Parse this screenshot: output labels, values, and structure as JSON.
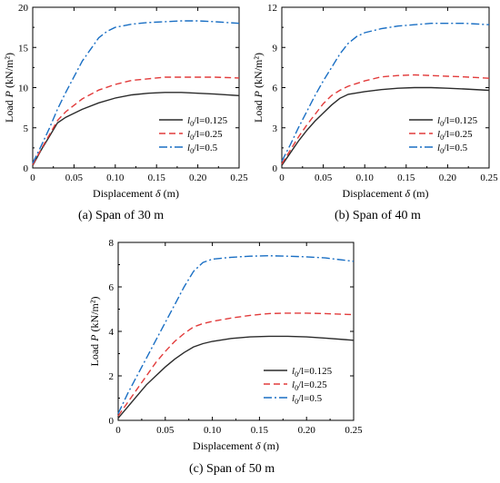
{
  "colors": {
    "l0125": "#2b2b2b",
    "l025": "#e23b3b",
    "l05": "#1a6fc4"
  },
  "chart_data": [
    {
      "type": "line",
      "caption": "(a) Span of 30 m",
      "xlabel": "Displacement",
      "xsymbol": "δ",
      "xunit": "(m)",
      "ylabel": "Load",
      "ysymbol": "P",
      "yunit": "(kN/m²)",
      "xlim": [
        0,
        0.25
      ],
      "ylim": [
        0,
        20
      ],
      "xticks": [
        0,
        0.05,
        0.1,
        0.15,
        0.2,
        0.25
      ],
      "xtick_labels": [
        "0",
        "0.05",
        "0.10",
        "0.15",
        "0.20",
        "0.25"
      ],
      "yticks": [
        0,
        5,
        10,
        15,
        20
      ],
      "ytick_labels": [
        "0",
        "5",
        "10",
        "15",
        "20"
      ],
      "legend": "bottom-right",
      "series": [
        {
          "name": "l0/l=0.125",
          "name_prefix": "l",
          "name_sub": "0",
          "name_suffix": "/l=0.125",
          "style": "solid",
          "color_key": "l0125",
          "x": [
            0,
            0.01,
            0.02,
            0.03,
            0.04,
            0.06,
            0.08,
            0.1,
            0.12,
            0.14,
            0.16,
            0.18,
            0.2,
            0.22,
            0.25
          ],
          "y": [
            0.3,
            2.2,
            3.9,
            5.6,
            6.3,
            7.3,
            8.1,
            8.7,
            9.1,
            9.3,
            9.4,
            9.4,
            9.3,
            9.2,
            9.0
          ]
        },
        {
          "name": "l0/l=0.25",
          "name_prefix": "l",
          "name_sub": "0",
          "name_suffix": "/l=0.25",
          "style": "dashed",
          "color_key": "l025",
          "x": [
            0,
            0.01,
            0.02,
            0.03,
            0.04,
            0.06,
            0.08,
            0.1,
            0.12,
            0.14,
            0.16,
            0.18,
            0.2,
            0.22,
            0.25
          ],
          "y": [
            0.4,
            2.3,
            4.1,
            5.9,
            7.0,
            8.6,
            9.7,
            10.4,
            10.9,
            11.1,
            11.3,
            11.3,
            11.3,
            11.3,
            11.2
          ]
        },
        {
          "name": "l0/l=0.5",
          "name_prefix": "l",
          "name_sub": "0",
          "name_suffix": "/l=0.5",
          "style": "dashdot",
          "color_key": "l05",
          "x": [
            0,
            0.01,
            0.02,
            0.03,
            0.04,
            0.06,
            0.08,
            0.09,
            0.1,
            0.12,
            0.14,
            0.16,
            0.18,
            0.2,
            0.22,
            0.25
          ],
          "y": [
            0.6,
            2.7,
            4.9,
            7.3,
            9.4,
            13.3,
            16.2,
            17.0,
            17.5,
            17.9,
            18.1,
            18.2,
            18.3,
            18.3,
            18.2,
            18.0
          ]
        }
      ]
    },
    {
      "type": "line",
      "caption": "(b) Span of 40 m",
      "xlabel": "Displacement",
      "xsymbol": "δ",
      "xunit": "(m)",
      "ylabel": "Load",
      "ysymbol": "P",
      "yunit": "(kN/m²)",
      "xlim": [
        0,
        0.25
      ],
      "ylim": [
        0,
        12
      ],
      "xticks": [
        0,
        0.05,
        0.1,
        0.15,
        0.2,
        0.25
      ],
      "xtick_labels": [
        "0",
        "0.05",
        "0.10",
        "0.15",
        "0.20",
        "0.25"
      ],
      "yticks": [
        0,
        3,
        6,
        9,
        12
      ],
      "ytick_labels": [
        "0",
        "3",
        "6",
        "9",
        "12"
      ],
      "legend": "bottom-right",
      "series": [
        {
          "name": "l0/l=0.125",
          "name_prefix": "l",
          "name_sub": "0",
          "name_suffix": "/l=0.125",
          "style": "solid",
          "color_key": "l0125",
          "x": [
            0,
            0.01,
            0.02,
            0.03,
            0.04,
            0.05,
            0.06,
            0.07,
            0.08,
            0.1,
            0.12,
            0.14,
            0.16,
            0.18,
            0.2,
            0.22,
            0.25
          ],
          "y": [
            0.2,
            1.1,
            2.0,
            2.8,
            3.5,
            4.1,
            4.7,
            5.2,
            5.5,
            5.7,
            5.85,
            5.95,
            6.0,
            6.0,
            5.95,
            5.9,
            5.8
          ]
        },
        {
          "name": "l0/l=0.25",
          "name_prefix": "l",
          "name_sub": "0",
          "name_suffix": "/l=0.25",
          "style": "dashed",
          "color_key": "l025",
          "x": [
            0,
            0.01,
            0.02,
            0.03,
            0.04,
            0.05,
            0.06,
            0.07,
            0.08,
            0.1,
            0.12,
            0.14,
            0.16,
            0.18,
            0.2,
            0.22,
            0.25
          ],
          "y": [
            0.3,
            1.3,
            2.3,
            3.2,
            4.0,
            4.8,
            5.4,
            5.8,
            6.1,
            6.5,
            6.8,
            6.9,
            6.95,
            6.9,
            6.85,
            6.8,
            6.7
          ]
        },
        {
          "name": "l0/l=0.5",
          "name_prefix": "l",
          "name_sub": "0",
          "name_suffix": "/l=0.5",
          "style": "dashdot",
          "color_key": "l05",
          "x": [
            0,
            0.01,
            0.02,
            0.03,
            0.04,
            0.05,
            0.06,
            0.07,
            0.08,
            0.09,
            0.1,
            0.12,
            0.14,
            0.16,
            0.18,
            0.2,
            0.22,
            0.25
          ],
          "y": [
            0.5,
            1.7,
            3.0,
            4.2,
            5.4,
            6.5,
            7.5,
            8.5,
            9.3,
            9.8,
            10.1,
            10.4,
            10.6,
            10.7,
            10.8,
            10.8,
            10.8,
            10.7
          ]
        }
      ]
    },
    {
      "type": "line",
      "caption": "(c) Span of 50 m",
      "xlabel": "Displacement",
      "xsymbol": "δ",
      "xunit": "(m)",
      "ylabel": "Load",
      "ysymbol": "P",
      "yunit": "(kN/m²)",
      "xlim": [
        0,
        0.25
      ],
      "ylim": [
        0,
        8
      ],
      "xticks": [
        0,
        0.05,
        0.1,
        0.15,
        0.2,
        0.25
      ],
      "xtick_labels": [
        "0",
        "0.05",
        "0.10",
        "0.15",
        "0.20",
        "0.25"
      ],
      "yticks": [
        0,
        2,
        4,
        6,
        8
      ],
      "ytick_labels": [
        "0",
        "2",
        "4",
        "6",
        "8"
      ],
      "legend": "bottom-right",
      "series": [
        {
          "name": "l0/l=0.125",
          "name_prefix": "l",
          "name_sub": "0",
          "name_suffix": "/l=0.125",
          "style": "solid",
          "color_key": "l0125",
          "x": [
            0,
            0.01,
            0.02,
            0.03,
            0.04,
            0.05,
            0.06,
            0.07,
            0.08,
            0.09,
            0.1,
            0.12,
            0.14,
            0.16,
            0.18,
            0.2,
            0.22,
            0.25
          ],
          "y": [
            0.1,
            0.6,
            1.1,
            1.6,
            2.0,
            2.4,
            2.75,
            3.05,
            3.3,
            3.45,
            3.55,
            3.68,
            3.75,
            3.78,
            3.78,
            3.75,
            3.7,
            3.6
          ]
        },
        {
          "name": "l0/l=0.25",
          "name_prefix": "l",
          "name_sub": "0",
          "name_suffix": "/l=0.25",
          "style": "dashed",
          "color_key": "l025",
          "x": [
            0,
            0.01,
            0.02,
            0.03,
            0.04,
            0.05,
            0.06,
            0.07,
            0.08,
            0.09,
            0.1,
            0.12,
            0.14,
            0.16,
            0.18,
            0.2,
            0.22,
            0.25
          ],
          "y": [
            0.2,
            0.8,
            1.4,
            2.0,
            2.6,
            3.1,
            3.55,
            3.9,
            4.2,
            4.35,
            4.45,
            4.6,
            4.72,
            4.8,
            4.82,
            4.82,
            4.8,
            4.75
          ]
        },
        {
          "name": "l0/l=0.5",
          "name_prefix": "l",
          "name_sub": "0",
          "name_suffix": "/l=0.5",
          "style": "dashdot",
          "color_key": "l05",
          "x": [
            0,
            0.01,
            0.02,
            0.03,
            0.04,
            0.05,
            0.06,
            0.07,
            0.08,
            0.09,
            0.1,
            0.12,
            0.14,
            0.16,
            0.18,
            0.2,
            0.22,
            0.25
          ],
          "y": [
            0.3,
            1.2,
            2.0,
            2.8,
            3.6,
            4.4,
            5.2,
            6.0,
            6.7,
            7.1,
            7.25,
            7.33,
            7.38,
            7.4,
            7.38,
            7.35,
            7.3,
            7.15
          ]
        }
      ]
    }
  ]
}
